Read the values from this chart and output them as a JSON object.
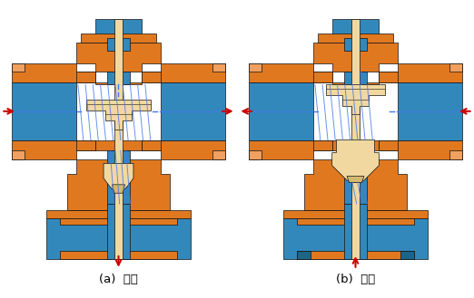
{
  "bg_color": "#ffffff",
  "OB": "#E07820",
  "OL": "#F0A060",
  "BB": "#3388BB",
  "BD": "#1A6688",
  "CR": "#F0D8A0",
  "CRD": "#D4B870",
  "BK": "#111111",
  "red_arrow": "#CC0000",
  "blue_dash": "#4477EE",
  "label_a": "(a)  分流",
  "label_b": "(b)  合流",
  "label_fontsize": 9.5
}
